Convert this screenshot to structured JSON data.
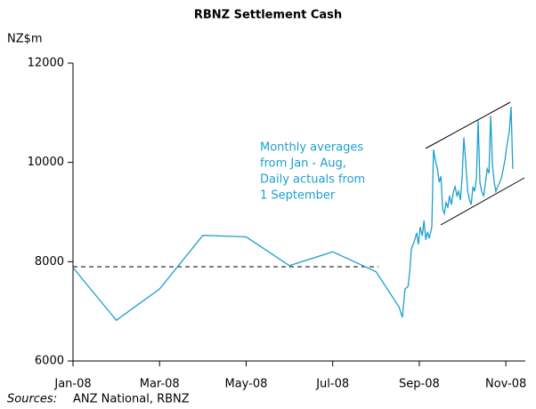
{
  "chart_data": {
    "type": "line",
    "title": "RBNZ Settlement Cash",
    "y_label": "NZ$m",
    "annotation": [
      "Monthly averages",
      "from Jan - Aug,",
      "Daily actuals from",
      "1 September"
    ],
    "source": {
      "label": "Sources:",
      "text": "ANZ National, RBNZ"
    },
    "xlim": [
      0,
      10.45
    ],
    "xticks": [
      {
        "value": 0,
        "label": "Jan-08"
      },
      {
        "value": 2,
        "label": "Mar-08"
      },
      {
        "value": 4,
        "label": "May-08"
      },
      {
        "value": 6,
        "label": "Jul-08"
      },
      {
        "value": 8,
        "label": "Sep-08"
      },
      {
        "value": 10,
        "label": "Nov-08"
      }
    ],
    "ylim": [
      6000,
      12000
    ],
    "yticks": [
      6000,
      8000,
      10000,
      12000
    ],
    "series": [
      {
        "name": "Settlement cash",
        "color": "#1e9fcf",
        "x": [
          0,
          1,
          2,
          3,
          4,
          5,
          6,
          7,
          7.53,
          7.61,
          7.67,
          7.74,
          7.78,
          7.82,
          7.88,
          7.94,
          7.98,
          8.02,
          8.07,
          8.11,
          8.15,
          8.19,
          8.23,
          8.29,
          8.33,
          8.37,
          8.42,
          8.46,
          8.5,
          8.54,
          8.58,
          8.62,
          8.66,
          8.7,
          8.74,
          8.79,
          8.83,
          8.87,
          8.91,
          8.95,
          8.99,
          9.03,
          9.07,
          9.12,
          9.16,
          9.2,
          9.24,
          9.28,
          9.32,
          9.36,
          9.4,
          9.44,
          9.49,
          9.53,
          9.57,
          9.61,
          9.65,
          9.69,
          9.73,
          9.77,
          9.81,
          9.86,
          9.9,
          9.94,
          9.98,
          10.02,
          10.08,
          10.12,
          10.16
        ],
        "values": [
          7880,
          6820,
          7450,
          8530,
          8500,
          7920,
          8200,
          7800,
          7090,
          6880,
          7450,
          7500,
          7800,
          8260,
          8400,
          8580,
          8350,
          8700,
          8520,
          8830,
          8440,
          8600,
          8470,
          8700,
          10260,
          10050,
          9870,
          9600,
          9720,
          9060,
          8970,
          9190,
          9100,
          9330,
          9150,
          9420,
          9510,
          9330,
          9420,
          9240,
          9690,
          10500,
          10050,
          9420,
          9240,
          9150,
          9510,
          9420,
          9690,
          10850,
          9600,
          9420,
          9330,
          9600,
          9870,
          9780,
          10940,
          9960,
          9600,
          9420,
          9510,
          9600,
          9690,
          9870,
          10050,
          10320,
          10620,
          11120,
          9870
        ]
      }
    ]
  }
}
